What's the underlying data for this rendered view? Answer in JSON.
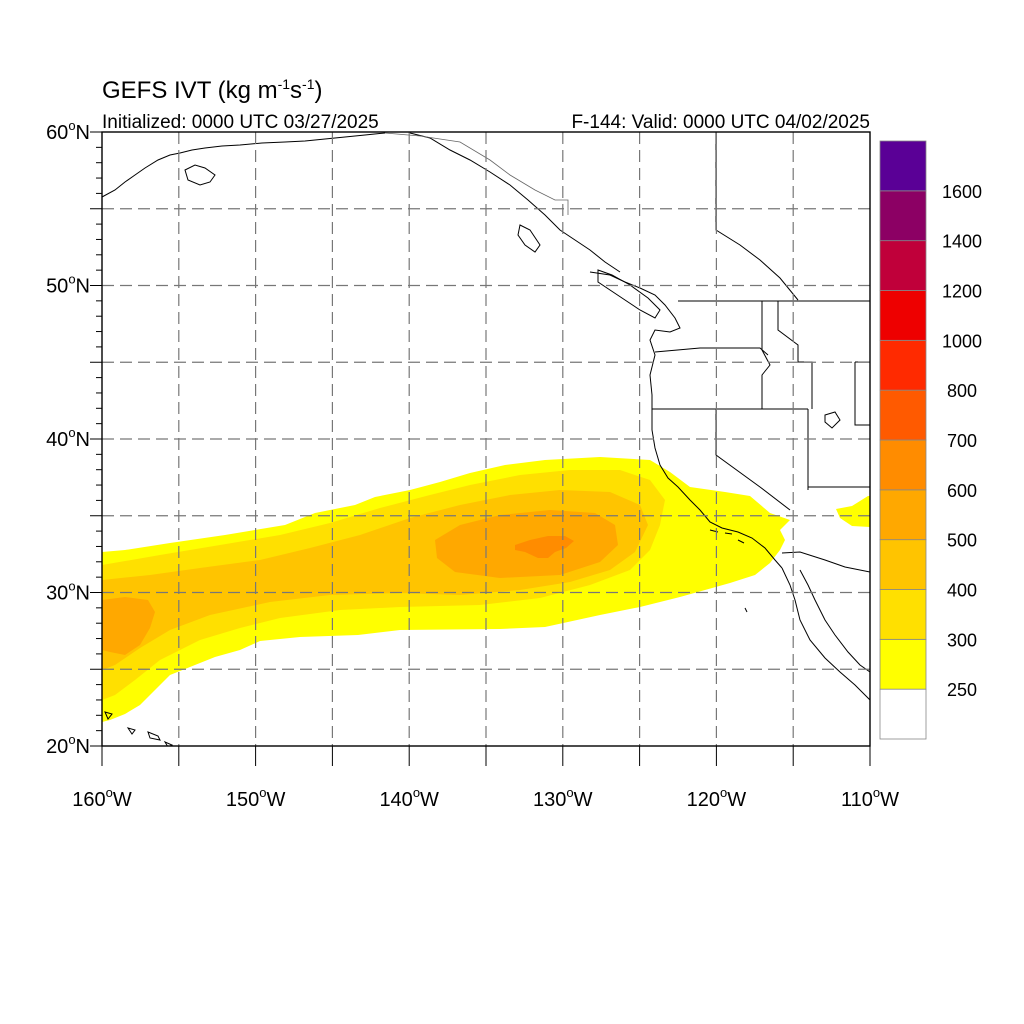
{
  "title": {
    "main": "GEFS IVT (kg m",
    "sup1": "-1",
    "mid": "s",
    "sup2": "-1",
    "end": ")"
  },
  "initialized": "Initialized: 0000 UTC 03/27/2025",
  "valid": "F-144: Valid: 0000 UTC 04/02/2025",
  "map_extent": {
    "lon": [
      -160,
      -110
    ],
    "lat": [
      20,
      60
    ]
  },
  "lat_ticks": [
    {
      "value": 60,
      "num": "60",
      "sup": "o",
      "dir": "N"
    },
    {
      "value": 50,
      "num": "50",
      "sup": "o",
      "dir": "N"
    },
    {
      "value": 40,
      "num": "40",
      "sup": "o",
      "dir": "N"
    },
    {
      "value": 30,
      "num": "30",
      "sup": "o",
      "dir": "N"
    },
    {
      "value": 20,
      "num": "20",
      "sup": "o",
      "dir": "N"
    }
  ],
  "lon_ticks": [
    {
      "value": -160,
      "num": "160",
      "sup": "o",
      "dir": "W"
    },
    {
      "value": -150,
      "num": "150",
      "sup": "o",
      "dir": "W"
    },
    {
      "value": -140,
      "num": "140",
      "sup": "o",
      "dir": "W"
    },
    {
      "value": -130,
      "num": "130",
      "sup": "o",
      "dir": "W"
    },
    {
      "value": -120,
      "num": "120",
      "sup": "o",
      "dir": "W"
    },
    {
      "value": -110,
      "num": "110",
      "sup": "o",
      "dir": "W"
    }
  ],
  "colorbar": {
    "colors": [
      "#ffffff",
      "#ffff00",
      "#ffe000",
      "#ffc400",
      "#ffa800",
      "#ff8c00",
      "#ff5a00",
      "#ff2a00",
      "#ee0000",
      "#c0003a",
      "#8c0064",
      "#5a0096"
    ],
    "labels": [
      "250",
      "300",
      "400",
      "500",
      "600",
      "700",
      "800",
      "1000",
      "1200",
      "1400",
      "1600"
    ]
  },
  "ivt_levels": [
    {
      "min": 250,
      "color": "#ffff00"
    },
    {
      "min": 300,
      "color": "#ffe000"
    },
    {
      "min": 400,
      "color": "#ffc400"
    },
    {
      "min": 500,
      "color": "#ffa800"
    },
    {
      "min": 600,
      "color": "#ff8c00"
    }
  ]
}
